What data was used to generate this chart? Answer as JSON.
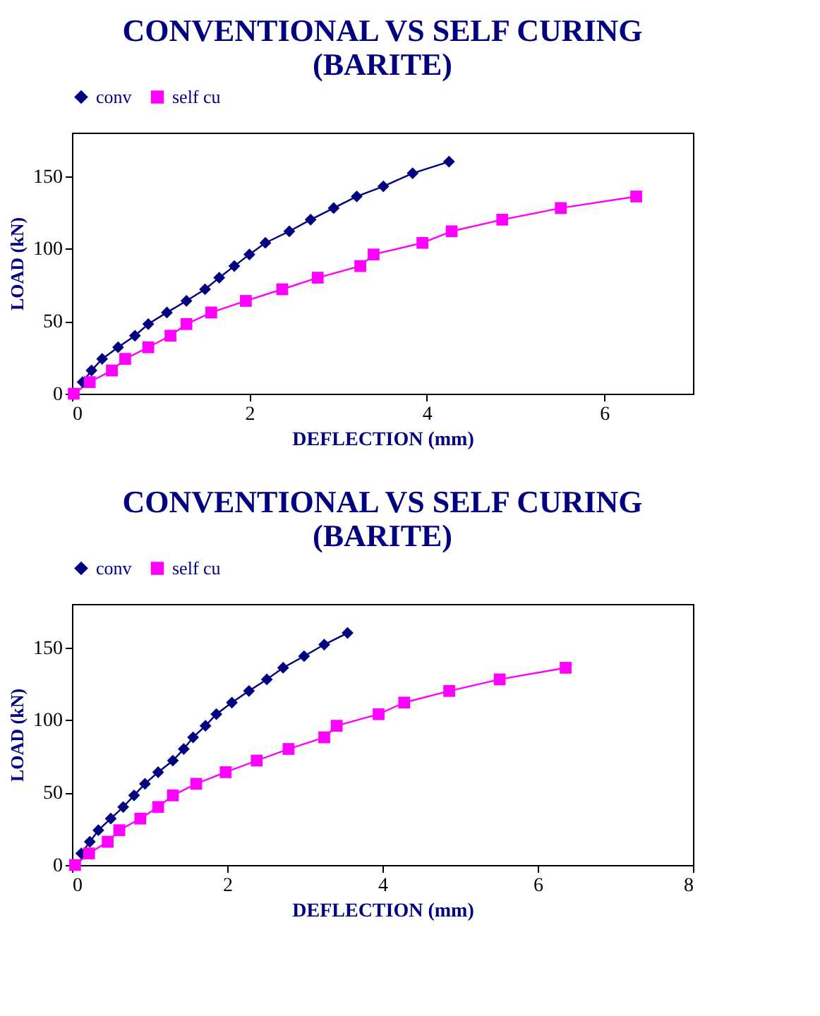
{
  "chart_data": [
    {
      "type": "line",
      "title": "CONVENTIONAL VS SELF CURING\n(BARITE)",
      "xlabel": "DEFLECTION (mm)",
      "ylabel": "LOAD (kN)",
      "xlim": [
        0,
        7
      ],
      "xticks": [
        0,
        2,
        4,
        6
      ],
      "ylim": [
        0,
        180
      ],
      "yticks": [
        0,
        50,
        100,
        150
      ],
      "grid": false,
      "legend": "top",
      "series": [
        {
          "name": "conv",
          "color": "#000080",
          "marker": "diamond",
          "x": [
            0.12,
            0.22,
            0.34,
            0.52,
            0.71,
            0.86,
            1.07,
            1.29,
            1.5,
            1.66,
            1.83,
            2.0,
            2.18,
            2.45,
            2.69,
            2.95,
            3.21,
            3.51,
            3.84,
            4.25
          ],
          "values": [
            8,
            16,
            24,
            32,
            40,
            48,
            56,
            64,
            72,
            80,
            88,
            96,
            104,
            112,
            120,
            128,
            136,
            143,
            152,
            160
          ]
        },
        {
          "name": "self cu",
          "color": "#ff00ff",
          "marker": "square",
          "x": [
            0.02,
            0.2,
            0.45,
            0.6,
            0.86,
            1.11,
            1.29,
            1.57,
            1.96,
            2.37,
            2.77,
            3.25,
            3.4,
            3.95,
            4.28,
            4.85,
            5.51,
            6.36
          ],
          "values": [
            0,
            8,
            16,
            24,
            32,
            40,
            48,
            56,
            64,
            72,
            80,
            88,
            96,
            104,
            112,
            120,
            128,
            136
          ]
        }
      ]
    },
    {
      "type": "line",
      "title": "CONVENTIONAL VS SELF CURING\n(BARITE)",
      "xlabel": "DEFLECTION (mm)",
      "ylabel": "LOAD (kN)",
      "xlim": [
        0,
        8
      ],
      "xticks": [
        0,
        2,
        4,
        6,
        8
      ],
      "ylim": [
        0,
        180
      ],
      "yticks": [
        0,
        50,
        100,
        150
      ],
      "grid": false,
      "legend": "top",
      "series": [
        {
          "name": "conv",
          "color": "#000080",
          "marker": "diamond",
          "x": [
            0.12,
            0.23,
            0.34,
            0.5,
            0.66,
            0.8,
            0.94,
            1.11,
            1.3,
            1.44,
            1.56,
            1.72,
            1.86,
            2.06,
            2.28,
            2.51,
            2.72,
            2.99,
            3.25,
            3.55
          ],
          "values": [
            8,
            16,
            24,
            32,
            40,
            48,
            56,
            64,
            72,
            80,
            88,
            96,
            104,
            112,
            120,
            128,
            136,
            144,
            152,
            160
          ]
        },
        {
          "name": "self cu",
          "color": "#ff00ff",
          "marker": "square",
          "x": [
            0.04,
            0.22,
            0.46,
            0.61,
            0.88,
            1.11,
            1.3,
            1.6,
            1.98,
            2.38,
            2.79,
            3.25,
            3.41,
            3.95,
            4.28,
            4.86,
            5.51,
            6.36
          ],
          "values": [
            0,
            8,
            16,
            24,
            32,
            40,
            48,
            56,
            64,
            72,
            80,
            88,
            96,
            104,
            112,
            120,
            128,
            136
          ]
        }
      ]
    }
  ]
}
